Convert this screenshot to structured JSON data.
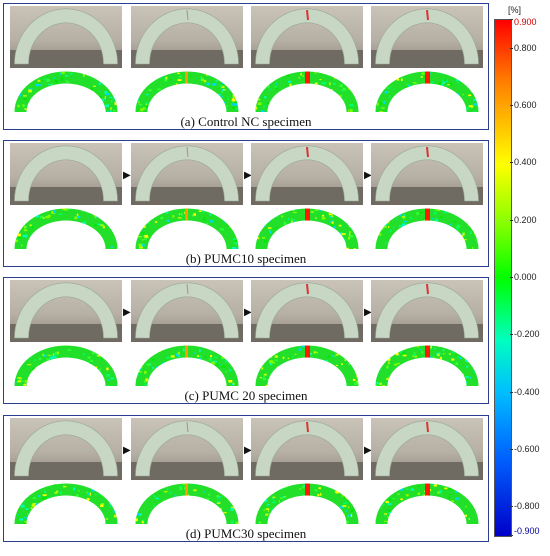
{
  "panels": [
    {
      "caption": "(a) Control NC specimen",
      "arrows": false
    },
    {
      "caption": "(b) PUMC10  specimen",
      "arrows": true
    },
    {
      "caption": "(c) PUMC 20 specimen",
      "arrows": true
    },
    {
      "caption": "(d) PUMC30  specimen",
      "arrows": true
    }
  ],
  "colorbar": {
    "unit": "[%]",
    "labels": [
      "0.900",
      "0.800",
      "0.600",
      "0.400",
      "0.200",
      "0.000",
      "-0.200",
      "-0.400",
      "-0.600",
      "-0.800",
      "-0.900"
    ],
    "values": [
      0.9,
      0.8,
      0.6,
      0.4,
      0.2,
      0.0,
      -0.2,
      -0.4,
      -0.6,
      -0.8,
      -0.9
    ],
    "colors": {
      "max": "#ff0000",
      "zero": "#00ff00",
      "min": "#0000c8"
    }
  },
  "icons": {
    "arrow": "right-arrow-icon"
  },
  "background_color": "#ffffff",
  "frame_color": "#2a3f8f"
}
